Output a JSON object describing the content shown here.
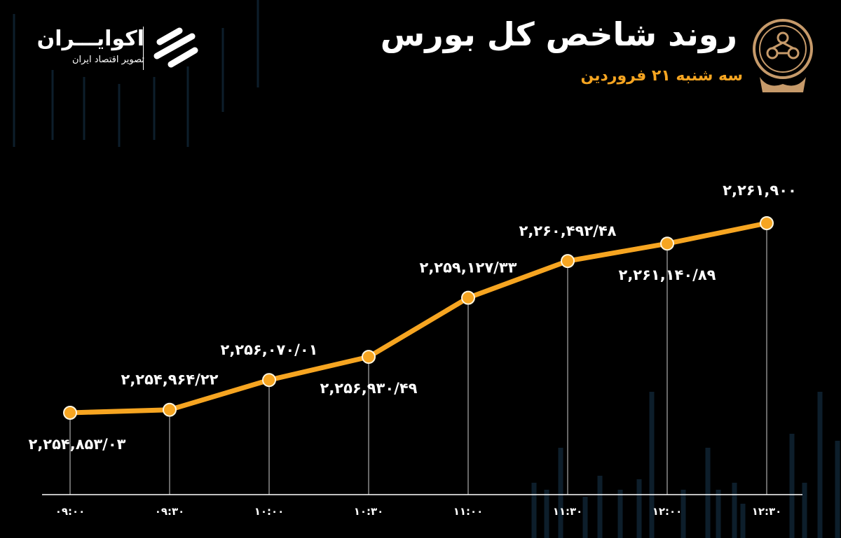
{
  "header": {
    "title": "روند شاخص کل بورس",
    "subtitle": "سه شنبه ۲۱ فروردین"
  },
  "brand": {
    "name": "اکوایـــران",
    "tagline": "تصویر اقتصاد ایران"
  },
  "colors": {
    "accent": "#f6a521",
    "background": "#000000",
    "text": "#ffffff"
  },
  "chart_data": {
    "type": "line",
    "x": [
      "۰۹:۰۰",
      "۰۹:۳۰",
      "۱۰:۰۰",
      "۱۰:۳۰",
      "۱۱:۰۰",
      "۱۱:۳۰",
      "۱۲:۰۰",
      "۱۲:۳۰"
    ],
    "values": [
      2254853.03,
      2254964.22,
      2256070.01,
      2256930.49,
      2259127.33,
      2260492.48,
      2261140.89,
      2261900
    ],
    "labels": [
      "۲,۲۵۴,۸۵۳/۰۳",
      "۲,۲۵۴,۹۶۴/۲۲",
      "۲,۲۵۶,۰۷۰/۰۱",
      "۲,۲۵۶,۹۳۰/۴۹",
      "۲,۲۵۹,۱۲۷/۳۳",
      "۲,۲۶۰,۴۹۲/۴۸",
      "۲,۲۶۱,۱۴۰/۸۹",
      "۲,۲۶۱,۹۰۰"
    ],
    "title": "روند شاخص کل بورس",
    "grid": false
  }
}
